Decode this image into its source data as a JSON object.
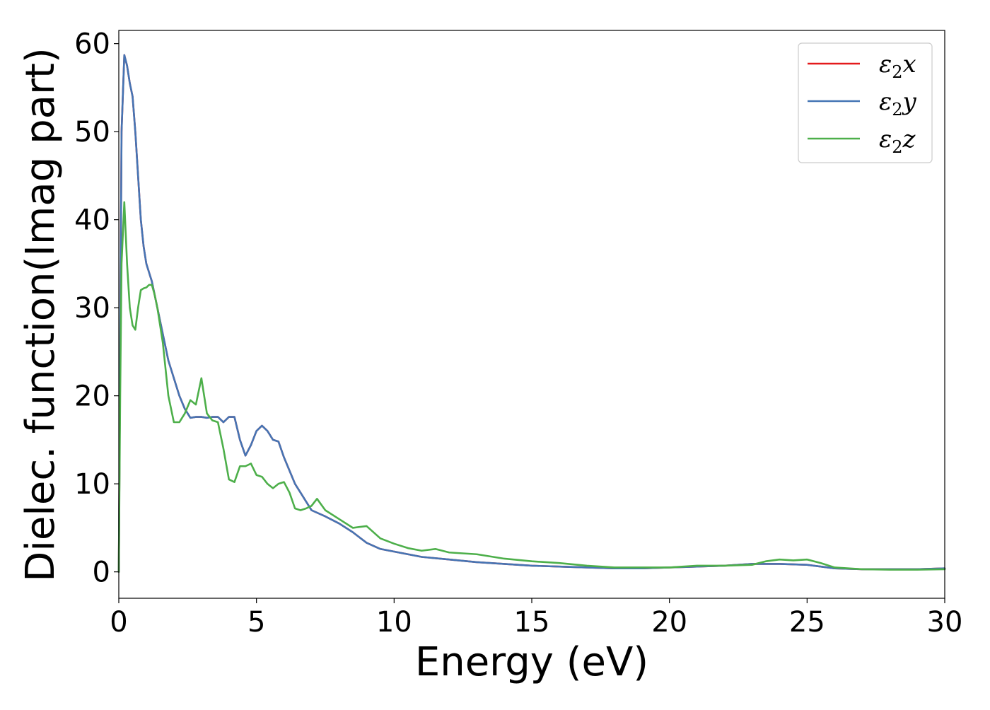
{
  "chart_data": {
    "type": "line",
    "title": "",
    "xlabel": "Energy (eV)",
    "ylabel": "Dielec. function(Imag part)",
    "xlim": [
      0,
      30
    ],
    "ylim": [
      -3,
      61.5
    ],
    "xticks": [
      0,
      5,
      10,
      15,
      20,
      25,
      30
    ],
    "yticks": [
      0,
      10,
      20,
      30,
      40,
      50,
      60
    ],
    "grid": false,
    "legend_position": "top-right",
    "series": [
      {
        "name": "ε₂x",
        "legend_base": "ε",
        "legend_sub": "2",
        "legend_var": "x",
        "color": "#e41a1c",
        "x": [
          0,
          0.05,
          0.1,
          0.2,
          0.3,
          0.4,
          0.5,
          0.6,
          0.7,
          0.8,
          0.9,
          1.0,
          1.1,
          1.2,
          1.4,
          1.6,
          1.8,
          2.0,
          2.2,
          2.4,
          2.6,
          2.8,
          3.0,
          3.2,
          3.4,
          3.6,
          3.8,
          4.0,
          4.2,
          4.4,
          4.6,
          4.8,
          5.0,
          5.2,
          5.4,
          5.6,
          5.8,
          6.0,
          6.2,
          6.4,
          6.6,
          6.8,
          7.0,
          7.5,
          8.0,
          8.5,
          9.0,
          9.5,
          10.0,
          10.5,
          11.0,
          12.0,
          13.0,
          14.0,
          15.0,
          16.0,
          17.0,
          18.0,
          19.0,
          20.0,
          21.0,
          22.0,
          23.0,
          24.0,
          25.0,
          26.0,
          27.0,
          28.0,
          29.0,
          30.0
        ],
        "values": [
          0,
          25,
          50,
          58.7,
          57.5,
          55.5,
          54,
          50,
          45,
          40,
          37,
          35,
          34,
          33,
          30,
          27,
          24,
          22,
          20,
          18.5,
          17.5,
          17.6,
          17.6,
          17.5,
          17.6,
          17.6,
          17,
          17.6,
          17.6,
          15,
          13.2,
          14.4,
          16,
          16.6,
          16,
          15,
          14.8,
          13,
          11.5,
          10,
          9,
          8,
          7,
          6.3,
          5.5,
          4.5,
          3.3,
          2.6,
          2.3,
          2,
          1.7,
          1.4,
          1.1,
          0.9,
          0.7,
          0.6,
          0.5,
          0.4,
          0.4,
          0.5,
          0.6,
          0.7,
          0.9,
          0.9,
          0.8,
          0.4,
          0.3,
          0.3,
          0.3,
          0.4
        ]
      },
      {
        "name": "ε₂y",
        "legend_base": "ε",
        "legend_sub": "2",
        "legend_var": "y",
        "color": "#4575b4",
        "x": [
          0,
          0.05,
          0.1,
          0.2,
          0.3,
          0.4,
          0.5,
          0.6,
          0.7,
          0.8,
          0.9,
          1.0,
          1.1,
          1.2,
          1.4,
          1.6,
          1.8,
          2.0,
          2.2,
          2.4,
          2.6,
          2.8,
          3.0,
          3.2,
          3.4,
          3.6,
          3.8,
          4.0,
          4.2,
          4.4,
          4.6,
          4.8,
          5.0,
          5.2,
          5.4,
          5.6,
          5.8,
          6.0,
          6.2,
          6.4,
          6.6,
          6.8,
          7.0,
          7.5,
          8.0,
          8.5,
          9.0,
          9.5,
          10.0,
          10.5,
          11.0,
          12.0,
          13.0,
          14.0,
          15.0,
          16.0,
          17.0,
          18.0,
          19.0,
          20.0,
          21.0,
          22.0,
          23.0,
          24.0,
          25.0,
          26.0,
          27.0,
          28.0,
          29.0,
          30.0
        ],
        "values": [
          0,
          25,
          50,
          58.7,
          57.5,
          55.5,
          54,
          50,
          45,
          40,
          37,
          35,
          34,
          33,
          30,
          27,
          24,
          22,
          20,
          18.5,
          17.5,
          17.6,
          17.6,
          17.5,
          17.6,
          17.6,
          17,
          17.6,
          17.6,
          15,
          13.2,
          14.4,
          16,
          16.6,
          16,
          15,
          14.8,
          13,
          11.5,
          10,
          9,
          8,
          7,
          6.3,
          5.5,
          4.5,
          3.3,
          2.6,
          2.3,
          2,
          1.7,
          1.4,
          1.1,
          0.9,
          0.7,
          0.6,
          0.5,
          0.4,
          0.4,
          0.5,
          0.6,
          0.7,
          0.9,
          0.9,
          0.8,
          0.4,
          0.3,
          0.3,
          0.3,
          0.4
        ]
      },
      {
        "name": "ε₂z",
        "legend_base": "ε",
        "legend_sub": "2",
        "legend_var": "z",
        "color": "#4daf4a",
        "x": [
          0,
          0.05,
          0.1,
          0.2,
          0.3,
          0.4,
          0.5,
          0.6,
          0.7,
          0.8,
          0.9,
          1.0,
          1.1,
          1.2,
          1.3,
          1.4,
          1.6,
          1.8,
          2.0,
          2.2,
          2.4,
          2.6,
          2.8,
          3.0,
          3.2,
          3.4,
          3.6,
          3.8,
          4.0,
          4.2,
          4.4,
          4.6,
          4.8,
          5.0,
          5.2,
          5.4,
          5.6,
          5.8,
          6.0,
          6.2,
          6.4,
          6.6,
          6.8,
          7.0,
          7.2,
          7.5,
          8.0,
          8.5,
          9.0,
          9.5,
          10.0,
          10.5,
          11.0,
          11.5,
          12.0,
          12.5,
          13.0,
          14.0,
          15.0,
          16.0,
          17.0,
          18.0,
          19.0,
          20.0,
          21.0,
          22.0,
          23.0,
          23.5,
          24.0,
          24.5,
          25.0,
          25.5,
          26.0,
          27.0,
          28.0,
          29.0,
          30.0
        ],
        "values": [
          0,
          20,
          35,
          42,
          35,
          30,
          28,
          27.5,
          30,
          32,
          32.2,
          32.3,
          32.6,
          32.6,
          31.5,
          30,
          26,
          20,
          17,
          17,
          18,
          19.5,
          19,
          22,
          18,
          17.2,
          17,
          14,
          10.5,
          10.2,
          12,
          12,
          12.3,
          11,
          10.8,
          10,
          9.5,
          10,
          10.2,
          9,
          7.2,
          7,
          7.2,
          7.5,
          8.3,
          7,
          6,
          5,
          5.2,
          3.8,
          3.2,
          2.7,
          2.4,
          2.6,
          2.2,
          2.1,
          2,
          1.5,
          1.2,
          1,
          0.7,
          0.5,
          0.5,
          0.5,
          0.7,
          0.7,
          0.8,
          1.2,
          1.4,
          1.3,
          1.4,
          1,
          0.5,
          0.3,
          0.25,
          0.25,
          0.3
        ]
      }
    ]
  }
}
